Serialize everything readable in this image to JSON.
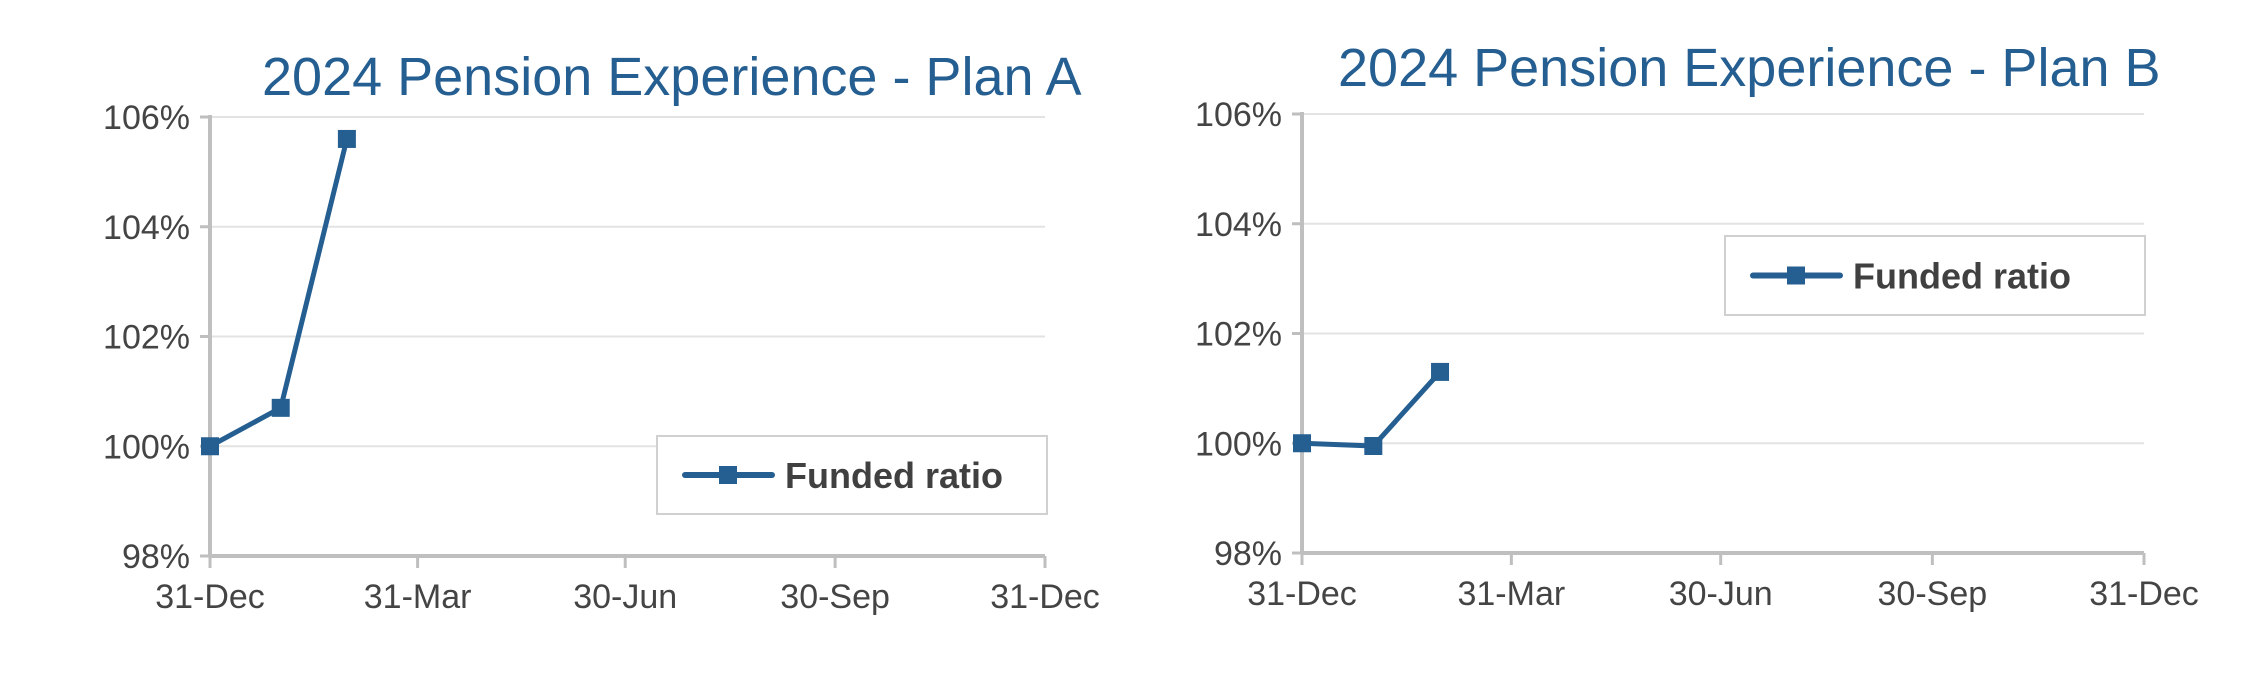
{
  "colors": {
    "series": "#255E91",
    "title": "#255E91",
    "axis": "#BFBFBF",
    "grid": "#E3E3E3",
    "tick_text": "#444444",
    "legend_text": "#404040",
    "legend_border": "#D0D0D0"
  },
  "chart_data": [
    {
      "type": "line",
      "title": "2024 Pension Experience - Plan A",
      "xlabel": "",
      "ylabel": "",
      "x_ticks": [
        "31-Dec",
        "31-Mar",
        "30-Jun",
        "30-Sep",
        "31-Dec"
      ],
      "y_ticks": [
        "98%",
        "100%",
        "102%",
        "104%",
        "106%"
      ],
      "ylim": [
        98,
        106
      ],
      "grid": true,
      "legend_position": "bottom-right",
      "series": [
        {
          "name": "Funded ratio",
          "marker": "square",
          "x": [
            "31-Dec-2023",
            "31-Jan-2024",
            "29-Feb-2024"
          ],
          "values": [
            100.0,
            100.7,
            105.6
          ]
        }
      ]
    },
    {
      "type": "line",
      "title": "2024 Pension Experience - Plan B",
      "xlabel": "",
      "ylabel": "",
      "x_ticks": [
        "31-Dec",
        "31-Mar",
        "30-Jun",
        "30-Sep",
        "31-Dec"
      ],
      "y_ticks": [
        "98%",
        "100%",
        "102%",
        "104%",
        "106%"
      ],
      "ylim": [
        98,
        106
      ],
      "grid": true,
      "legend_position": "top-right",
      "series": [
        {
          "name": "Funded ratio",
          "marker": "square",
          "x": [
            "31-Dec-2023",
            "31-Jan-2024",
            "29-Feb-2024"
          ],
          "values": [
            100.0,
            99.95,
            101.3
          ]
        }
      ]
    }
  ]
}
